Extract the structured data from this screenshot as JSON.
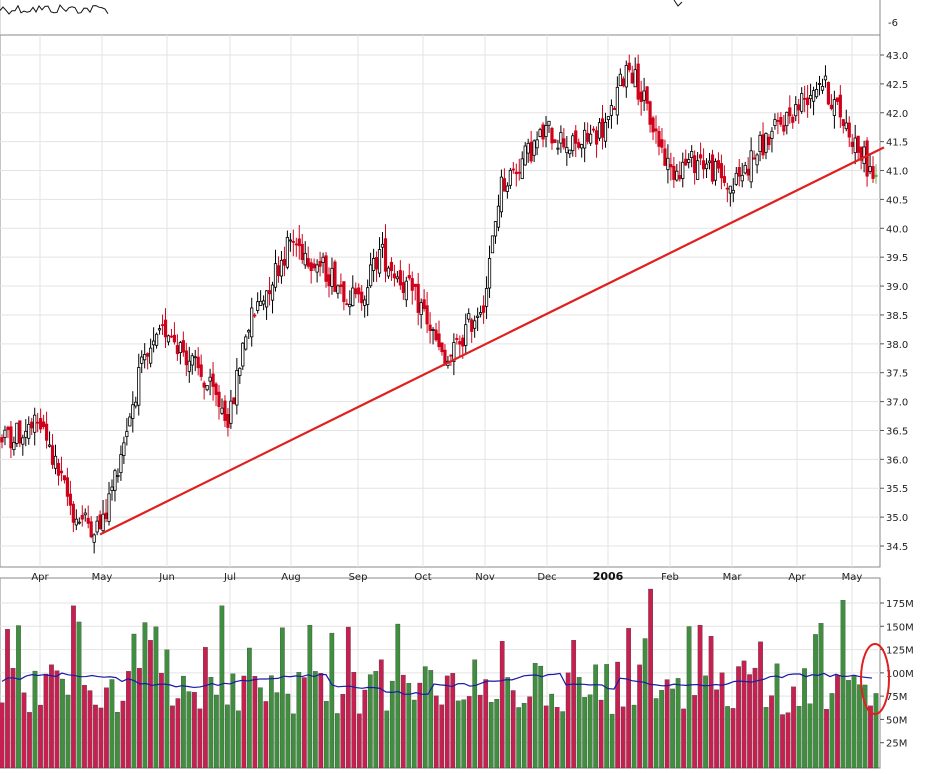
{
  "chart_data": [
    {
      "type": "candlestick",
      "price_ticks": [
        "43.0",
        "42.5",
        "42.0",
        "41.5",
        "41.0",
        "40.5",
        "40.0",
        "39.5",
        "39.0",
        "38.5",
        "38.0",
        "37.5",
        "37.0",
        "36.5",
        "36.0",
        "35.5",
        "35.0",
        "34.5"
      ],
      "top_panel_tick": "-6",
      "x_ticks": [
        "Apr",
        "May",
        "Jun",
        "Jul",
        "Aug",
        "Sep",
        "Oct",
        "Nov",
        "Dec",
        "2006",
        "Feb",
        "Mar",
        "Apr",
        "May"
      ],
      "ylim": [
        34.2,
        43.4
      ],
      "grid": true,
      "candle_up_color": "#000000",
      "candle_down_color": "#d0021b",
      "last_candle_color": "#6ab04c",
      "trendline": {
        "color": "#e02020",
        "start": {
          "month": "May",
          "price": 34.7
        },
        "end": {
          "month": "May",
          "price": 41.4
        }
      },
      "close_path": [
        {
          "month": "Apr",
          "price": 36.3
        },
        {
          "month": "Apr",
          "price": 36.6
        },
        {
          "month": "May",
          "price": 35.0
        },
        {
          "month": "May",
          "price": 34.8
        },
        {
          "month": "Jun",
          "price": 37.5
        },
        {
          "month": "Jun",
          "price": 38.3
        },
        {
          "month": "Jul",
          "price": 36.7
        },
        {
          "month": "Jul",
          "price": 38.2
        },
        {
          "month": "Aug",
          "price": 39.8
        },
        {
          "month": "Aug",
          "price": 39.2
        },
        {
          "month": "Sep",
          "price": 38.7
        },
        {
          "month": "Sep",
          "price": 39.6
        },
        {
          "month": "Oct",
          "price": 38.6
        },
        {
          "month": "Oct",
          "price": 37.6
        },
        {
          "month": "Nov",
          "price": 38.8
        },
        {
          "month": "Nov",
          "price": 40.7
        },
        {
          "month": "Dec",
          "price": 41.7
        },
        {
          "month": "Dec",
          "price": 41.4
        },
        {
          "month": "2006",
          "price": 41.8
        },
        {
          "month": "2006",
          "price": 42.9
        },
        {
          "month": "Feb",
          "price": 41.0
        },
        {
          "month": "Feb",
          "price": 41.2
        },
        {
          "month": "Mar",
          "price": 40.7
        },
        {
          "month": "Mar",
          "price": 41.4
        },
        {
          "month": "Apr",
          "price": 42.1
        },
        {
          "month": "Apr",
          "price": 42.6
        },
        {
          "month": "May",
          "price": 41.6
        },
        {
          "month": "May",
          "price": 40.8
        }
      ]
    },
    {
      "type": "bar",
      "volume_ticks": [
        "175M",
        "150M",
        "125M",
        "100M",
        "75M",
        "50M",
        "25M"
      ],
      "ylim": [
        0,
        190
      ],
      "units": "M",
      "up_color": "#3f8f3f",
      "down_color": "#c71f4f",
      "moving_average_color": "#1a1aa6",
      "moving_average_level": 92,
      "peak_bars": [
        {
          "month": "May",
          "value": 175
        },
        {
          "month": "2006",
          "value": 190
        },
        {
          "month": "May",
          "value": 178
        }
      ],
      "highlight_color": "#e02020"
    }
  ]
}
